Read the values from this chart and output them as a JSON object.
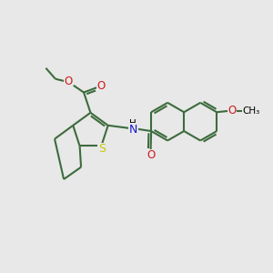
{
  "bg_color": "#e8e8e8",
  "bond_color": "#3d6b3d",
  "bond_width": 1.5,
  "S_color": "#c8c800",
  "N_color": "#1a1acc",
  "O_color": "#cc1a1a",
  "black": "#000000",
  "figsize": [
    3.0,
    3.0
  ],
  "dpi": 100,
  "xlim": [
    0,
    10
  ],
  "ylim": [
    0,
    10
  ]
}
